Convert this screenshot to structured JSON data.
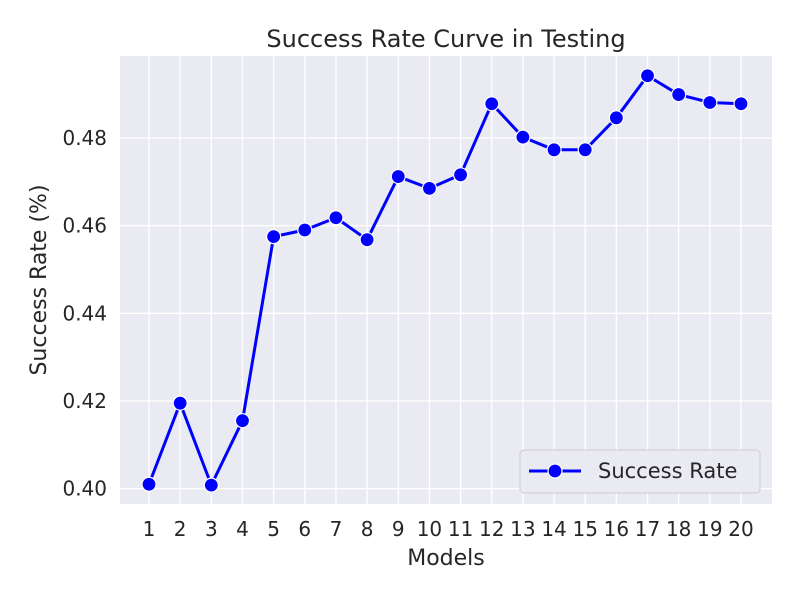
{
  "chart_data": {
    "type": "line",
    "title": "Success Rate Curve in Testing",
    "xlabel": "Models",
    "ylabel": "Success Rate (%)",
    "categories": [
      "1",
      "2",
      "3",
      "4",
      "5",
      "6",
      "7",
      "8",
      "9",
      "10",
      "11",
      "12",
      "13",
      "14",
      "15",
      "16",
      "17",
      "18",
      "19",
      "20"
    ],
    "series": [
      {
        "name": "Success Rate",
        "values": [
          0.401,
          0.4195,
          0.4008,
          0.4155,
          0.4575,
          0.459,
          0.4618,
          0.4568,
          0.4712,
          0.4685,
          0.4716,
          0.4878,
          0.4802,
          0.4773,
          0.4773,
          0.4846,
          0.4942,
          0.4899,
          0.4881,
          0.4878
        ],
        "color": "#0000ff",
        "marker": "circle"
      }
    ],
    "yticks": [
      0.4,
      0.42,
      0.44,
      0.46,
      0.48
    ],
    "ytick_labels": [
      "0.40",
      "0.42",
      "0.44",
      "0.46",
      "0.48"
    ],
    "ylim": [
      0.3965,
      0.4987
    ],
    "grid": true,
    "legend_position": "lower-right",
    "background": "#eaeaf2"
  }
}
